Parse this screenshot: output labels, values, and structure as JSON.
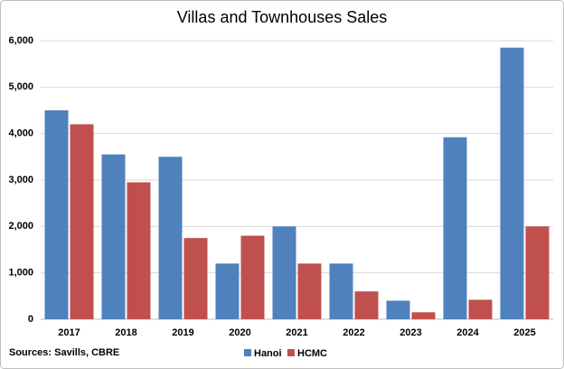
{
  "chart_data": {
    "type": "bar",
    "title": "Villas and Townhouses Sales",
    "categories": [
      "2017",
      "2018",
      "2019",
      "2020",
      "2021",
      "2022",
      "2023",
      "2024",
      "2025"
    ],
    "series": [
      {
        "name": "Hanoi",
        "color": "#4f81bd",
        "values": [
          4500,
          3550,
          3500,
          1200,
          2000,
          1200,
          400,
          3920,
          5850
        ]
      },
      {
        "name": "HCMC",
        "color": "#c0504d",
        "values": [
          4200,
          2950,
          1750,
          1800,
          1200,
          600,
          150,
          420,
          2000
        ]
      }
    ],
    "ylim": [
      0,
      6000
    ],
    "yticks": [
      0,
      {
        "value": 1000,
        "label": "1,000"
      },
      {
        "value": 2000,
        "label": "2,000"
      },
      {
        "value": 3000,
        "label": "3,000"
      },
      {
        "value": 4000,
        "label": "4,000"
      },
      {
        "value": 5000,
        "label": "5,000"
      },
      {
        "value": 6000,
        "label": "6,000"
      }
    ],
    "grid": true,
    "legend": "bottom",
    "source": "Sources: Savills, CBRE"
  }
}
